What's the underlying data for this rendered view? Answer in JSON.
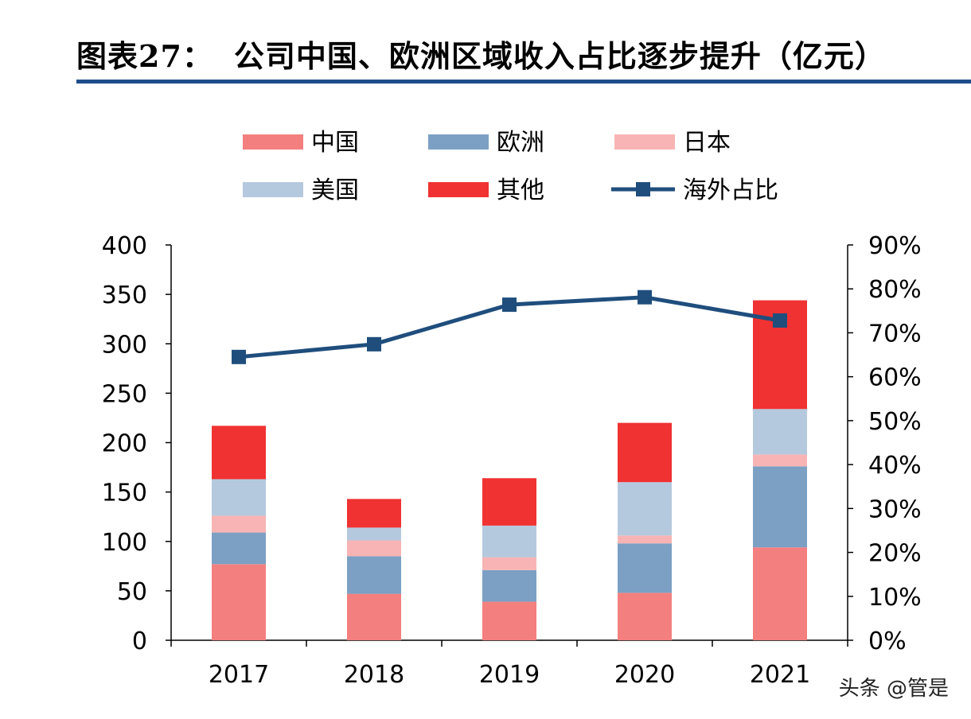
{
  "header": {
    "figure_label": "图表27：",
    "title": "公司中国、欧洲区域收入占比逐步提升（亿元）"
  },
  "watermark": "头条 @管是",
  "chart_data": {
    "type": "bar",
    "stacked": true,
    "categories": [
      "2017",
      "2018",
      "2019",
      "2020",
      "2021"
    ],
    "series": [
      {
        "name": "中国",
        "type": "bar",
        "color": "#f47f7f",
        "values": [
          77,
          47,
          39,
          48,
          94
        ]
      },
      {
        "name": "欧洲",
        "type": "bar",
        "color": "#7ba0c4",
        "values": [
          32,
          38,
          32,
          50,
          82
        ]
      },
      {
        "name": "日本",
        "type": "bar",
        "color": "#f8b4b4",
        "values": [
          17,
          16,
          13,
          8,
          12
        ]
      },
      {
        "name": "美国",
        "type": "bar",
        "color": "#b5c9de",
        "values": [
          37,
          13,
          32,
          54,
          46
        ]
      },
      {
        "name": "其他",
        "type": "bar",
        "color": "#f03232",
        "values": [
          54,
          29,
          48,
          60,
          110
        ]
      },
      {
        "name": "海外占比",
        "type": "line",
        "axis": "right",
        "color": "#1f4e7d",
        "values": [
          64.5,
          67.4,
          76.4,
          78.1,
          72.8
        ]
      }
    ],
    "ylim": [
      0,
      400
    ],
    "yticks": [
      "0",
      "50",
      "100",
      "150",
      "200",
      "250",
      "300",
      "350",
      "400"
    ],
    "y2lim": [
      0,
      90
    ],
    "y2ticks": [
      "0%",
      "10%",
      "20%",
      "30%",
      "40%",
      "50%",
      "60%",
      "70%",
      "80%",
      "90%"
    ],
    "legend": "top",
    "grid": false
  }
}
